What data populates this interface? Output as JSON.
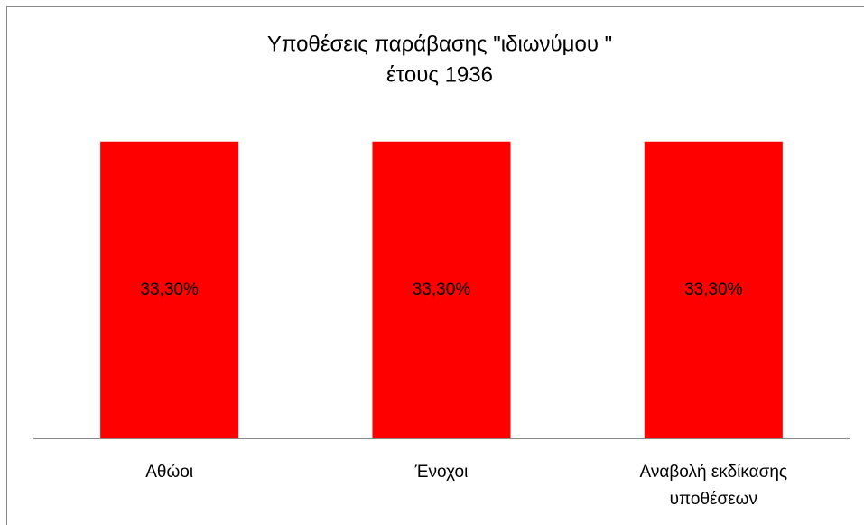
{
  "chart_data": {
    "type": "bar",
    "title": [
      "Υποθέσεις παράβασης \"ιδιωνύμου \"",
      "έτους 1936"
    ],
    "categories": [
      "Αθώοι",
      "Ένοχοι",
      "Αναβολή εκδίκασης υποθέσεων"
    ],
    "values": [
      33.3,
      33.3,
      33.3
    ],
    "value_labels": [
      "33,30%",
      "33,30%",
      "33,30%"
    ],
    "color": "#ff0000",
    "ylim": [
      0,
      35
    ]
  }
}
